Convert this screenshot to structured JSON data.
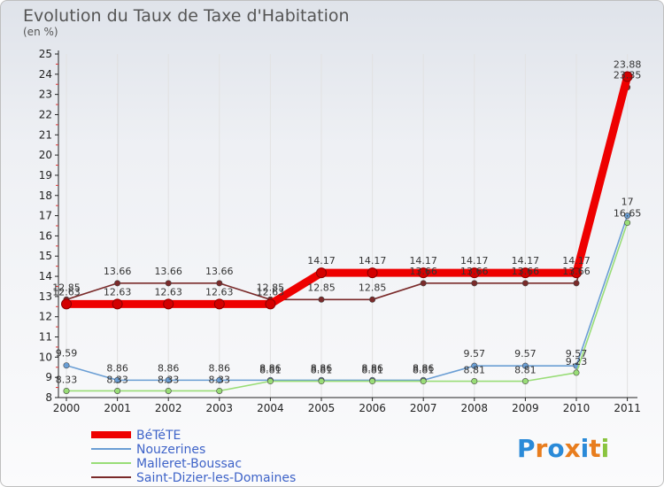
{
  "chart_data": {
    "type": "line",
    "title": "Evolution du Taux de Taxe d'Habitation",
    "ylabel": "(en %)",
    "ylim": [
      8,
      25
    ],
    "yticks": [
      8,
      9,
      10,
      11,
      12,
      13,
      14,
      15,
      16,
      17,
      18,
      19,
      20,
      21,
      22,
      23,
      24,
      25
    ],
    "categories": [
      "2000",
      "2001",
      "2002",
      "2003",
      "2004",
      "2005",
      "2006",
      "2007",
      "2008",
      "2009",
      "2010",
      "2011"
    ],
    "series": [
      {
        "name": "BéTéTE",
        "color": "#ee0000",
        "values": [
          12.63,
          12.63,
          12.63,
          12.63,
          12.63,
          14.17,
          14.17,
          14.17,
          14.17,
          14.17,
          14.17,
          23.88
        ],
        "labels": [
          "12.63",
          "12.63",
          "12.63",
          "12.63",
          "12.63",
          "14.17",
          "14.17",
          "14.17",
          "14.17",
          "14.17",
          "14.17",
          "23.88"
        ]
      },
      {
        "name": "Nouzerines",
        "color": "#6a9ed4",
        "values": [
          9.59,
          8.86,
          8.86,
          8.86,
          8.86,
          8.86,
          8.86,
          8.86,
          9.57,
          9.57,
          9.57,
          17
        ],
        "labels": [
          "9.59",
          "8.86",
          "8.86",
          "8.86",
          "8.86",
          "8.86",
          "8.86",
          "8.86",
          "9.57",
          "9.57",
          "9.57",
          "17"
        ]
      },
      {
        "name": "Malleret-Boussac",
        "color": "#99dd77",
        "values": [
          8.33,
          8.33,
          8.33,
          8.33,
          8.81,
          8.81,
          8.81,
          8.81,
          8.81,
          8.81,
          9.23,
          16.65
        ],
        "labels": [
          "8.33",
          "8.33",
          "8.33",
          "8.33",
          "8.81",
          "8.81",
          "8.81",
          "8.81",
          "8.81",
          "8.81",
          "9.23",
          "16.65"
        ]
      },
      {
        "name": "Saint-Dizier-les-Domaines",
        "color": "#7a2a2a",
        "values": [
          12.85,
          13.66,
          13.66,
          13.66,
          12.85,
          12.85,
          12.85,
          13.66,
          13.66,
          13.66,
          13.66,
          23.35
        ],
        "labels": [
          "12.85",
          "13.66",
          "13.66",
          "13.66",
          "12.85",
          "12.85",
          "12.85",
          "13.66",
          "13.66",
          "13.66",
          "13.66",
          "23.35"
        ]
      }
    ]
  },
  "logo": {
    "chars": [
      "P",
      "r",
      "o",
      "x",
      "i",
      "t",
      "i"
    ],
    "colors": [
      "#2a8ad8",
      "#e87d1e",
      "#2a8ad8",
      "#e87d1e",
      "#2a8ad8",
      "#e87d1e",
      "#8ac43f"
    ]
  }
}
